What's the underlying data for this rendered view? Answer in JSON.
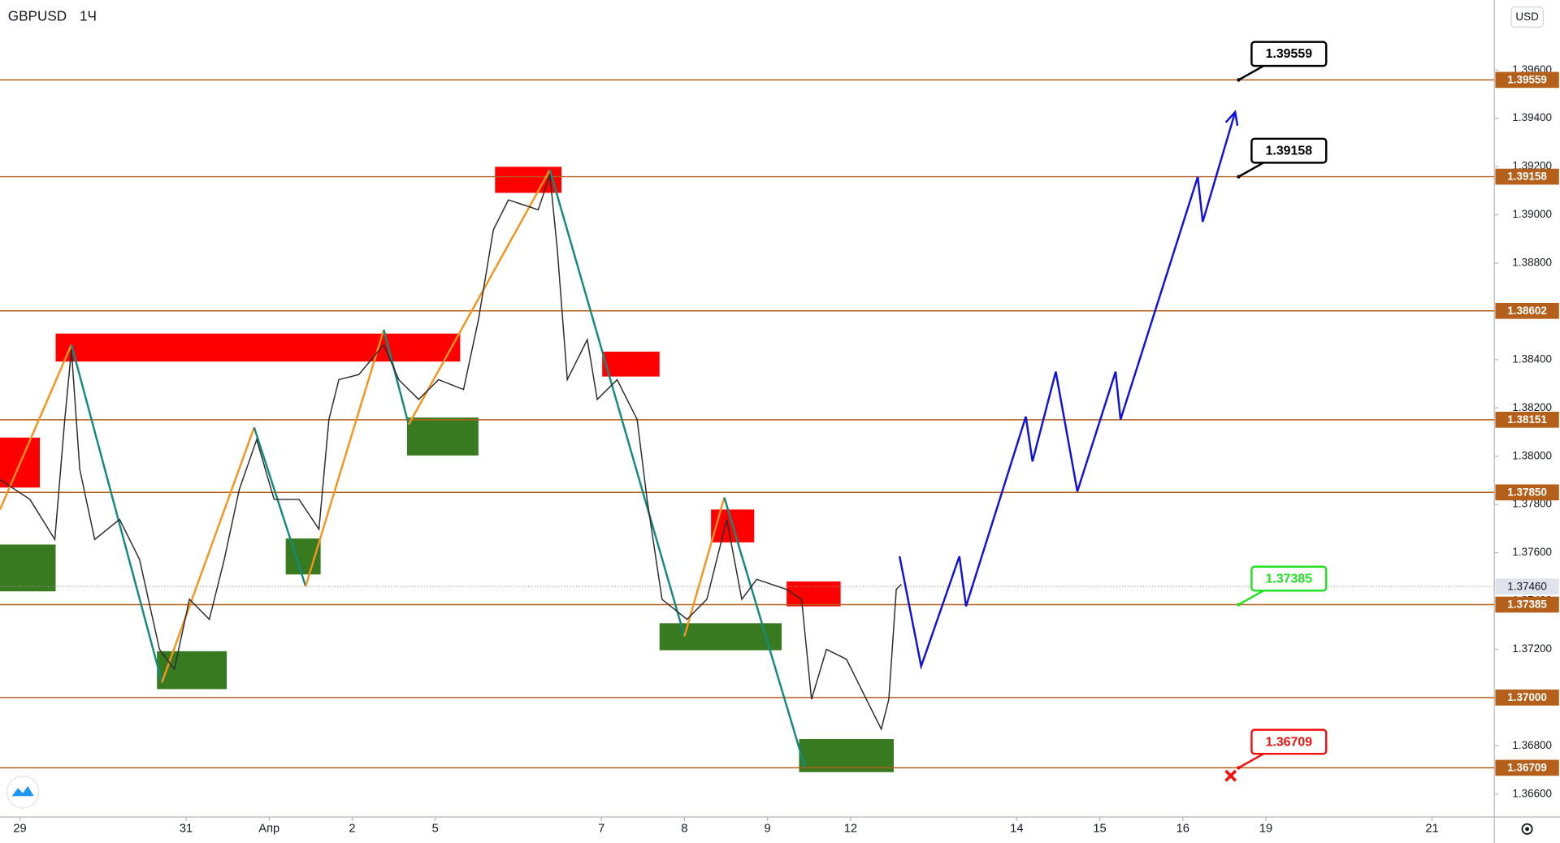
{
  "chart_data": {
    "type": "line",
    "symbol": "GBPUSD",
    "interval": "1Ч",
    "currency": "USD",
    "xlim": [
      -0.24,
      17.75
    ],
    "ylim": [
      1.36505,
      1.3989
    ],
    "xticks": [
      {
        "value": 0,
        "label": "29"
      },
      {
        "value": 2,
        "label": "31"
      },
      {
        "value": 3,
        "label": "Апр"
      },
      {
        "value": 4,
        "label": "2"
      },
      {
        "value": 5,
        "label": "5"
      },
      {
        "value": 7,
        "label": "7"
      },
      {
        "value": 8,
        "label": "8"
      },
      {
        "value": 9,
        "label": "9"
      },
      {
        "value": 10,
        "label": "12"
      },
      {
        "value": 12,
        "label": "14"
      },
      {
        "value": 13,
        "label": "15"
      },
      {
        "value": 14,
        "label": "16"
      },
      {
        "value": 15,
        "label": "19"
      },
      {
        "value": 17,
        "label": "21"
      }
    ],
    "yticks": [
      {
        "value": 1.366,
        "label": "1.36600"
      },
      {
        "value": 1.368,
        "label": "1.36800"
      },
      {
        "value": 1.37,
        "label": "1.37000"
      },
      {
        "value": 1.372,
        "label": "1.37200"
      },
      {
        "value": 1.374,
        "label": "1.37400"
      },
      {
        "value": 1.376,
        "label": "1.37600"
      },
      {
        "value": 1.378,
        "label": "1.37800"
      },
      {
        "value": 1.38,
        "label": "1.38000"
      },
      {
        "value": 1.382,
        "label": "1.38200"
      },
      {
        "value": 1.384,
        "label": "1.38400"
      },
      {
        "value": 1.386,
        "label": "1.38600"
      },
      {
        "value": 1.388,
        "label": "1.38800"
      },
      {
        "value": 1.39,
        "label": "1.39000"
      },
      {
        "value": 1.392,
        "label": "1.39200"
      },
      {
        "value": 1.394,
        "label": "1.39400"
      },
      {
        "value": 1.396,
        "label": "1.39600"
      }
    ],
    "levels": [
      {
        "value": 1.39559,
        "label": "1.39559"
      },
      {
        "value": 1.39158,
        "label": "1.39158"
      },
      {
        "value": 1.38602,
        "label": "1.38602"
      },
      {
        "value": 1.38151,
        "label": "1.38151"
      },
      {
        "value": 1.3785,
        "label": "1.37850"
      },
      {
        "value": 1.37385,
        "label": "1.37385"
      },
      {
        "value": 1.37,
        "label": "1.37000"
      },
      {
        "value": 1.36709,
        "label": "1.36709"
      }
    ],
    "level_color": "#b5601a",
    "current_price": {
      "value": 1.3746,
      "label": "1.37460"
    },
    "callouts": [
      {
        "value": 1.39559,
        "label": "1.39559",
        "color": "#000000"
      },
      {
        "value": 1.39158,
        "label": "1.39158",
        "color": "#000000"
      },
      {
        "value": 1.37385,
        "label": "1.37385",
        "color": "#22e022"
      },
      {
        "value": 1.36709,
        "label": "1.36709",
        "color": "#f01010"
      }
    ],
    "zones": [
      {
        "x": [
          -0.24,
          0.24
        ],
        "y": [
          1.38077,
          1.3787
        ],
        "color": "#ff0000"
      },
      {
        "x": [
          0.43,
          5.3
        ],
        "y": [
          1.38508,
          1.38392
        ],
        "color": "#ff0000"
      },
      {
        "x": [
          5.72,
          6.52
        ],
        "y": [
          1.39199,
          1.39091
        ],
        "color": "#ff0000"
      },
      {
        "x": [
          7.01,
          7.7
        ],
        "y": [
          1.38433,
          1.3833
        ],
        "color": "#ff0000"
      },
      {
        "x": [
          8.32,
          8.84
        ],
        "y": [
          1.37779,
          1.37643
        ],
        "color": "#ff0000"
      },
      {
        "x": [
          9.23,
          9.88
        ],
        "y": [
          1.37481,
          1.37378
        ],
        "color": "#ff0000"
      },
      {
        "x": [
          -0.24,
          0.43
        ],
        "y": [
          1.37634,
          1.3744
        ],
        "color": "#377a1f"
      },
      {
        "x": [
          1.65,
          2.49
        ],
        "y": [
          1.37192,
          1.37035
        ],
        "color": "#377a1f"
      },
      {
        "x": [
          3.2,
          3.62
        ],
        "y": [
          1.37659,
          1.3751
        ],
        "color": "#377a1f"
      },
      {
        "x": [
          4.66,
          5.52
        ],
        "y": [
          1.3816,
          1.38003
        ],
        "color": "#377a1f"
      },
      {
        "x": [
          7.7,
          9.17
        ],
        "y": [
          1.37308,
          1.37196
        ],
        "color": "#377a1f"
      },
      {
        "x": [
          9.38,
          10.52
        ],
        "y": [
          1.36828,
          1.36691
        ],
        "color": "#377a1f"
      }
    ],
    "zigzag": {
      "up_color": "#f7941d",
      "down_color": "#14897d",
      "x": [
        -0.24,
        0.62,
        1.71,
        2.82,
        3.44,
        4.38,
        4.68,
        6.38,
        8.0,
        8.48,
        9.45
      ],
      "values": [
        1.37779,
        1.38462,
        1.37063,
        1.38119,
        1.37461,
        1.38524,
        1.38131,
        1.39186,
        1.37254,
        1.37829,
        1.36712
      ]
    },
    "series": [
      {
        "color": "#2b2b2b",
        "x": [
          -0.24,
          0.12,
          0.42,
          0.54,
          0.62,
          0.72,
          0.9,
          1.2,
          1.44,
          1.68,
          1.86,
          2.04,
          2.28,
          2.46,
          2.64,
          2.85,
          3.06,
          3.36,
          3.6,
          3.72,
          3.84,
          4.08,
          4.38,
          4.56,
          4.8,
          5.04,
          5.34,
          5.52,
          5.7,
          5.88,
          6.24,
          6.38,
          6.47,
          6.59,
          6.83,
          6.95,
          7.19,
          7.43,
          7.55,
          7.73,
          8.03,
          8.27,
          8.51,
          8.69,
          8.87,
          9.23,
          9.41,
          9.53,
          9.71,
          9.95,
          10.19,
          10.37,
          10.46,
          10.55,
          10.61
        ],
        "values": [
          1.37903,
          1.37821,
          1.37655,
          1.38152,
          1.38441,
          1.37945,
          1.37655,
          1.37738,
          1.37572,
          1.372,
          1.37117,
          1.37407,
          1.37324,
          1.37572,
          1.37862,
          1.38069,
          1.37821,
          1.37821,
          1.37697,
          1.38152,
          1.38317,
          1.38338,
          1.38462,
          1.38317,
          1.38235,
          1.38317,
          1.38276,
          1.38566,
          1.38938,
          1.39062,
          1.39021,
          1.39166,
          1.38855,
          1.38317,
          1.38483,
          1.38235,
          1.38317,
          1.38152,
          1.37821,
          1.37407,
          1.37324,
          1.37407,
          1.37738,
          1.37407,
          1.3749,
          1.37448,
          1.37407,
          1.36993,
          1.372,
          1.37159,
          1.36993,
          1.36869,
          1.36993,
          1.37448,
          1.37469
        ]
      },
      {
        "color": "#1010e0",
        "x": [
          10.59,
          10.85,
          11.31,
          11.39,
          12.11,
          12.19,
          12.47,
          12.73,
          13.19,
          13.25,
          14.18,
          14.24,
          14.63
        ],
        "values": [
          1.37585,
          1.3713,
          1.37585,
          1.37378,
          1.38164,
          1.37978,
          1.3835,
          1.37854,
          1.3835,
          1.38152,
          1.39157,
          1.38971,
          1.39426
        ]
      }
    ]
  }
}
